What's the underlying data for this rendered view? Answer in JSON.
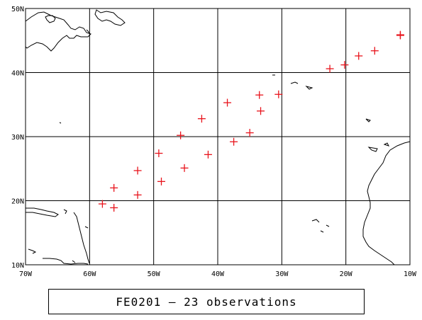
{
  "caption": "FE0201 – 23 observations",
  "chart_data": {
    "type": "scatter",
    "marker": "plus",
    "marker_color": "#e8141c",
    "grid": true,
    "xlim": [
      -70,
      -10
    ],
    "ylim": [
      10,
      50
    ],
    "x_ticks": [
      -70,
      -60,
      -50,
      -40,
      -30,
      -20,
      -10
    ],
    "y_ticks": [
      10,
      20,
      30,
      40,
      50
    ],
    "x_tick_labels": [
      "70W",
      "60W",
      "50W",
      "40W",
      "30W",
      "20W",
      "10W"
    ],
    "y_tick_labels": [
      "10N",
      "20N",
      "30N",
      "40N",
      "50N"
    ],
    "points": [
      {
        "lon": -11.5,
        "lat": 45.8
      },
      {
        "lon": -15.5,
        "lat": 43.4
      },
      {
        "lon": -18.0,
        "lat": 42.6
      },
      {
        "lon": -20.2,
        "lat": 41.2
      },
      {
        "lon": -22.5,
        "lat": 40.6
      },
      {
        "lon": -30.5,
        "lat": 36.6
      },
      {
        "lon": -33.5,
        "lat": 36.5
      },
      {
        "lon": -33.3,
        "lat": 34.0
      },
      {
        "lon": -38.5,
        "lat": 35.3
      },
      {
        "lon": -35.0,
        "lat": 30.6
      },
      {
        "lon": -37.5,
        "lat": 29.2
      },
      {
        "lon": -42.5,
        "lat": 32.8
      },
      {
        "lon": -41.5,
        "lat": 27.2
      },
      {
        "lon": -45.8,
        "lat": 30.2
      },
      {
        "lon": -45.2,
        "lat": 25.1
      },
      {
        "lon": -49.2,
        "lat": 27.4
      },
      {
        "lon": -48.8,
        "lat": 23.0
      },
      {
        "lon": -52.5,
        "lat": 24.7
      },
      {
        "lon": -52.5,
        "lat": 20.9
      },
      {
        "lon": -56.2,
        "lat": 22.0
      },
      {
        "lon": -56.2,
        "lat": 18.9
      },
      {
        "lon": -58.0,
        "lat": 19.5
      },
      {
        "lon": -11.5,
        "lat": 45.9
      }
    ]
  }
}
